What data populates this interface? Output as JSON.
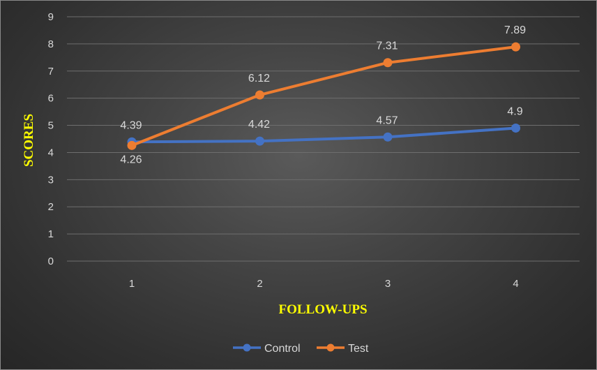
{
  "chart_data": {
    "type": "line",
    "x": [
      1,
      2,
      3,
      4
    ],
    "categories": [
      "1",
      "2",
      "3",
      "4"
    ],
    "series": [
      {
        "name": "Control",
        "values": [
          4.39,
          4.42,
          4.57,
          4.9
        ],
        "labels": [
          "4.39",
          "4.42",
          "4.57",
          "4.9"
        ],
        "color": "#4472c4"
      },
      {
        "name": "Test",
        "values": [
          4.26,
          6.12,
          7.31,
          7.89
        ],
        "labels": [
          "4.26",
          "6.12",
          "7.31",
          "7.89"
        ],
        "color": "#ed7d31"
      }
    ],
    "title": "",
    "xlabel": "FOLLOW-UPS",
    "ylabel": "SCORES",
    "ylim": [
      0,
      9
    ],
    "yticks": [
      "0",
      "1",
      "2",
      "3",
      "4",
      "5",
      "6",
      "7",
      "8",
      "9"
    ],
    "grid": true,
    "legend": "bottom",
    "axis_title_color": "#ffff00"
  }
}
